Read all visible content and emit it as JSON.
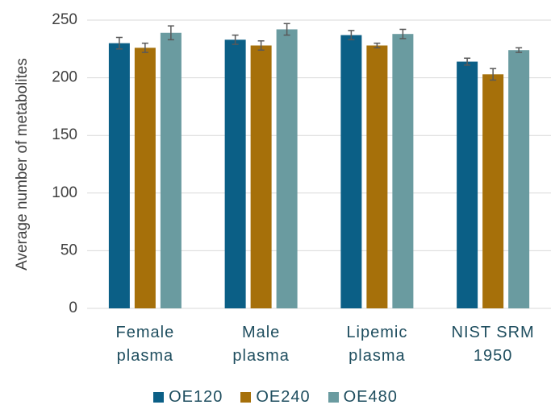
{
  "chart_data": {
    "type": "bar",
    "y_label": "Average number of metabolites",
    "categories": [
      "Female plasma",
      "Male plasma",
      "Lipemic plasma",
      "NIST SRM 1950"
    ],
    "series": [
      {
        "name": "OE120",
        "color": "#0b5f86",
        "values": [
          230,
          233,
          237,
          214
        ],
        "errors": [
          5,
          4,
          4,
          3
        ]
      },
      {
        "name": "OE240",
        "color": "#a6700a",
        "values": [
          226,
          228,
          228,
          203
        ],
        "errors": [
          4,
          4,
          2,
          5
        ]
      },
      {
        "name": "OE480",
        "color": "#6a9ba0",
        "values": [
          239,
          242,
          238,
          224
        ],
        "errors": [
          6,
          5,
          4,
          2
        ]
      }
    ],
    "ylim": [
      0,
      250
    ],
    "yticks": [
      0,
      50,
      100,
      150,
      200,
      250
    ],
    "grid": true
  }
}
